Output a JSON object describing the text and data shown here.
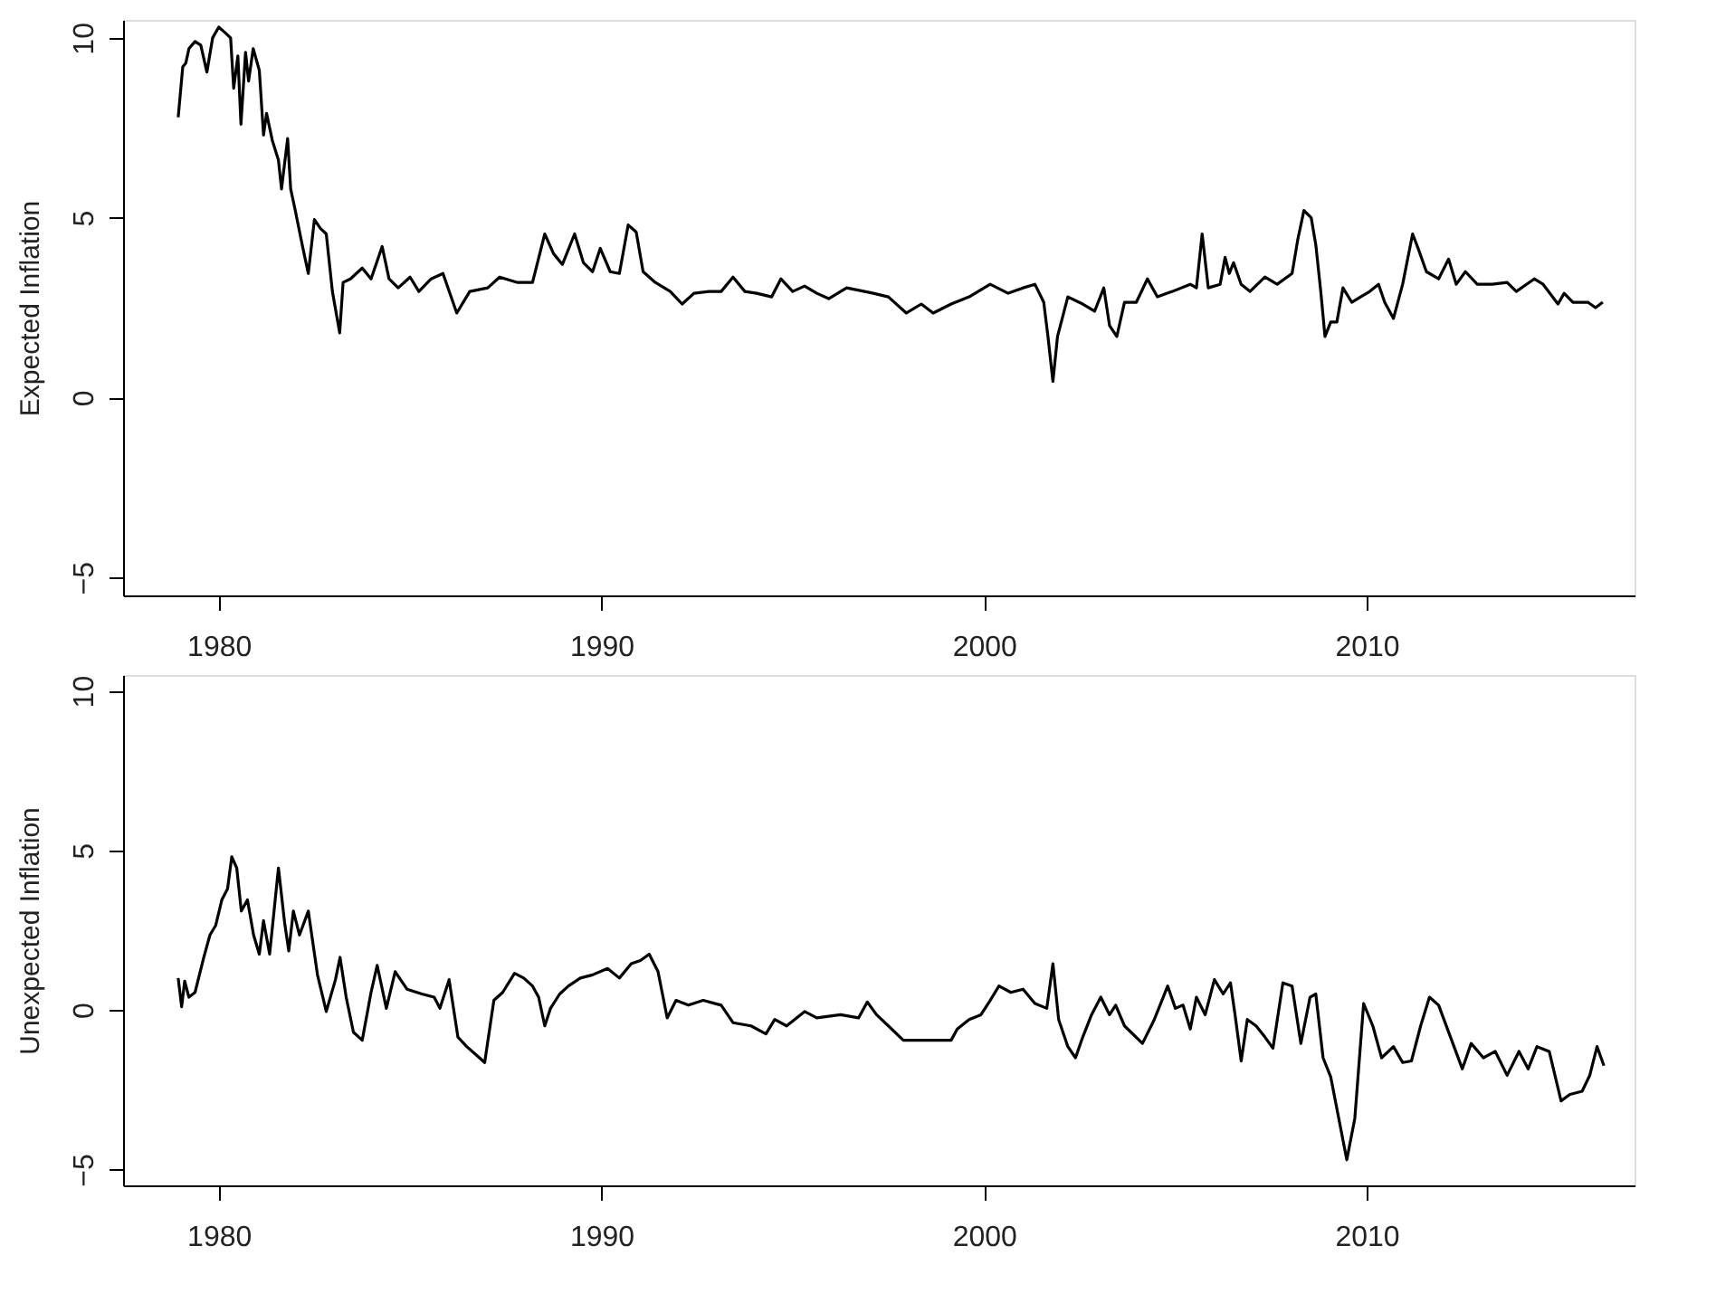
{
  "chart_data": [
    {
      "type": "line",
      "ylabel": "Expected Inflation",
      "xlim": [
        1977.5,
        2017
      ],
      "ylim": [
        -5.5,
        10.5
      ],
      "xticks": [
        1980,
        1990,
        2000,
        2010
      ],
      "yticks": [
        -5,
        0,
        5,
        10
      ],
      "grid": false,
      "x": [
        1978.94,
        1979.06,
        1979.14,
        1979.22,
        1979.38,
        1979.53,
        1979.69,
        1979.84,
        1980.0,
        1980.16,
        1980.31,
        1980.39,
        1980.5,
        1980.58,
        1980.7,
        1980.78,
        1980.9,
        1981.06,
        1981.17,
        1981.25,
        1981.4,
        1981.56,
        1981.64,
        1981.8,
        1981.88,
        1982.0,
        1982.19,
        1982.34,
        1982.5,
        1982.66,
        1982.81,
        1982.97,
        1983.16,
        1983.25,
        1983.44,
        1983.75,
        1983.98,
        1984.27,
        1984.45,
        1984.69,
        1985.0,
        1985.23,
        1985.55,
        1985.86,
        1986.22,
        1986.56,
        1987.03,
        1987.34,
        1987.81,
        1988.2,
        1988.52,
        1988.75,
        1988.98,
        1989.3,
        1989.53,
        1989.77,
        1989.97,
        1990.23,
        1990.47,
        1990.7,
        1990.91,
        1991.09,
        1991.41,
        1991.8,
        1992.11,
        1992.42,
        1992.81,
        1993.13,
        1993.44,
        1993.75,
        1994.06,
        1994.45,
        1994.69,
        1995.0,
        1995.31,
        1995.63,
        1995.94,
        1996.41,
        1996.88,
        1997.11,
        1997.5,
        1997.97,
        1998.36,
        1998.67,
        1999.14,
        1999.61,
        2000.16,
        2000.63,
        2001.02,
        2001.33,
        2001.56,
        2001.67,
        2001.8,
        2001.92,
        2002.19,
        2002.58,
        2002.89,
        2003.13,
        2003.28,
        2003.47,
        2003.67,
        2003.98,
        2004.27,
        2004.53,
        2004.92,
        2005.39,
        2005.55,
        2005.7,
        2005.86,
        2006.17,
        2006.3,
        2006.41,
        2006.52,
        2006.72,
        2006.95,
        2007.34,
        2007.66,
        2008.05,
        2008.2,
        2008.36,
        2008.55,
        2008.67,
        2008.8,
        2008.91,
        2009.06,
        2009.22,
        2009.38,
        2009.61,
        2009.84,
        2010.08,
        2010.31,
        2010.47,
        2010.7,
        2010.94,
        2011.2,
        2011.36,
        2011.56,
        2011.88,
        2012.14,
        2012.34,
        2012.58,
        2012.89,
        2013.28,
        2013.67,
        2013.91,
        2014.38,
        2014.61,
        2015.0,
        2015.16,
        2015.39,
        2015.78,
        2015.98,
        2016.17
      ],
      "series": [
        {
          "color": "#000000",
          "values": [
            7.79,
            9.2,
            9.3,
            9.7,
            9.9,
            9.8,
            9.05,
            10.0,
            10.3,
            10.15,
            10.0,
            8.6,
            9.5,
            7.6,
            9.6,
            8.8,
            9.7,
            9.1,
            7.3,
            7.9,
            7.15,
            6.6,
            5.8,
            7.2,
            5.8,
            5.2,
            4.2,
            3.45,
            4.95,
            4.7,
            4.55,
            2.95,
            1.8,
            3.2,
            3.3,
            3.6,
            3.3,
            4.2,
            3.3,
            3.05,
            3.35,
            2.95,
            3.3,
            3.45,
            2.35,
            2.95,
            3.05,
            3.35,
            3.2,
            3.2,
            4.55,
            4.0,
            3.7,
            4.55,
            3.75,
            3.5,
            4.15,
            3.5,
            3.45,
            4.8,
            4.6,
            3.5,
            3.2,
            2.95,
            2.6,
            2.9,
            2.95,
            2.95,
            3.35,
            2.95,
            2.9,
            2.8,
            3.3,
            2.95,
            3.1,
            2.9,
            2.75,
            3.05,
            2.95,
            2.9,
            2.8,
            2.35,
            2.6,
            2.35,
            2.6,
            2.8,
            3.15,
            2.9,
            3.05,
            3.15,
            2.65,
            1.7,
            0.45,
            1.7,
            2.8,
            2.6,
            2.4,
            3.05,
            2.0,
            1.7,
            2.65,
            2.65,
            3.3,
            2.8,
            2.95,
            3.15,
            3.05,
            4.55,
            3.05,
            3.15,
            3.9,
            3.45,
            3.75,
            3.15,
            2.95,
            3.35,
            3.15,
            3.45,
            4.4,
            5.2,
            5.0,
            4.25,
            2.95,
            1.7,
            2.1,
            2.1,
            3.05,
            2.65,
            2.8,
            2.95,
            3.15,
            2.65,
            2.2,
            3.15,
            4.55,
            4.1,
            3.5,
            3.3,
            3.85,
            3.15,
            3.5,
            3.15,
            3.15,
            3.2,
            2.95,
            3.3,
            3.15,
            2.6,
            2.9,
            2.65,
            2.65,
            2.5,
            2.65
          ]
        }
      ]
    },
    {
      "type": "line",
      "ylabel": "Unexpected Inflation",
      "xlim": [
        1977.5,
        2017
      ],
      "ylim": [
        -5.5,
        10.5
      ],
      "xticks": [
        1980,
        1990,
        2000,
        2010
      ],
      "yticks": [
        -5,
        0,
        5,
        10
      ],
      "grid": false,
      "x": [
        1978.94,
        1979.03,
        1979.11,
        1979.22,
        1979.38,
        1979.61,
        1979.77,
        1979.92,
        1980.08,
        1980.23,
        1980.34,
        1980.47,
        1980.59,
        1980.75,
        1980.91,
        1981.06,
        1981.17,
        1981.33,
        1981.56,
        1981.72,
        1981.83,
        1981.95,
        1982.11,
        1982.34,
        1982.58,
        1982.81,
        1983.05,
        1983.17,
        1983.33,
        1983.52,
        1983.75,
        1983.98,
        1984.14,
        1984.38,
        1984.61,
        1984.92,
        1985.31,
        1985.63,
        1985.78,
        1986.02,
        1986.25,
        1986.48,
        1986.72,
        1986.95,
        1987.19,
        1987.42,
        1987.73,
        1987.97,
        1988.2,
        1988.36,
        1988.52,
        1988.67,
        1988.91,
        1989.14,
        1989.45,
        1989.77,
        1990.16,
        1990.47,
        1990.78,
        1991.02,
        1991.25,
        1991.48,
        1991.72,
        1991.95,
        1992.27,
        1992.66,
        1993.13,
        1993.44,
        1993.91,
        1994.3,
        1994.53,
        1994.84,
        1995.31,
        1995.63,
        1996.25,
        1996.72,
        1996.95,
        1997.19,
        1997.5,
        1997.89,
        1998.36,
        1998.83,
        1999.14,
        1999.3,
        1999.61,
        1999.92,
        2000.16,
        2000.39,
        2000.7,
        2001.02,
        2001.33,
        2001.64,
        2001.8,
        2001.95,
        2002.19,
        2002.39,
        2002.58,
        2002.81,
        2003.05,
        2003.28,
        2003.44,
        2003.67,
        2004.14,
        2004.45,
        2004.8,
        2005.0,
        2005.2,
        2005.39,
        2005.55,
        2005.78,
        2006.02,
        2006.25,
        2006.44,
        2006.56,
        2006.72,
        2006.88,
        2007.11,
        2007.34,
        2007.55,
        2007.81,
        2008.05,
        2008.28,
        2008.52,
        2008.67,
        2008.86,
        2009.06,
        2009.27,
        2009.48,
        2009.69,
        2009.92,
        2010.16,
        2010.39,
        2010.7,
        2010.94,
        2011.17,
        2011.41,
        2011.64,
        2011.88,
        2012.19,
        2012.5,
        2012.73,
        2013.05,
        2013.36,
        2013.67,
        2013.98,
        2014.22,
        2014.45,
        2014.77,
        2015.08,
        2015.31,
        2015.63,
        2015.83,
        2016.02,
        2016.2
      ],
      "series": [
        {
          "color": "#000000",
          "values": [
            1.0,
            0.1,
            0.9,
            0.4,
            0.55,
            1.65,
            2.35,
            2.65,
            3.45,
            3.8,
            4.8,
            4.45,
            3.1,
            3.45,
            2.35,
            1.75,
            2.8,
            1.75,
            4.45,
            2.75,
            1.85,
            3.1,
            2.35,
            3.1,
            1.1,
            -0.05,
            0.95,
            1.65,
            0.4,
            -0.7,
            -0.95,
            0.55,
            1.4,
            0.05,
            1.2,
            0.65,
            0.5,
            0.4,
            0.05,
            0.95,
            -0.85,
            -1.15,
            -1.4,
            -1.65,
            0.3,
            0.55,
            1.15,
            1.0,
            0.75,
            0.4,
            -0.5,
            0.05,
            0.5,
            0.75,
            1.0,
            1.1,
            1.3,
            1.0,
            1.45,
            1.55,
            1.75,
            1.2,
            -0.25,
            0.3,
            0.15,
            0.3,
            0.15,
            -0.4,
            -0.5,
            -0.75,
            -0.3,
            -0.5,
            -0.05,
            -0.25,
            -0.15,
            -0.25,
            0.25,
            -0.15,
            -0.5,
            -0.95,
            -0.95,
            -0.95,
            -0.95,
            -0.6,
            -0.3,
            -0.15,
            0.3,
            0.75,
            0.55,
            0.65,
            0.2,
            0.05,
            1.45,
            -0.3,
            -1.15,
            -1.5,
            -0.85,
            -0.15,
            0.4,
            -0.15,
            0.15,
            -0.5,
            -1.05,
            -0.3,
            0.75,
            0.05,
            0.15,
            -0.6,
            0.4,
            -0.15,
            0.95,
            0.5,
            0.85,
            -0.15,
            -1.6,
            -0.3,
            -0.5,
            -0.85,
            -1.2,
            0.85,
            0.75,
            -1.05,
            0.4,
            0.5,
            -1.5,
            -2.1,
            -3.4,
            -4.7,
            -3.4,
            0.2,
            -0.5,
            -1.5,
            -1.15,
            -1.65,
            -1.6,
            -0.5,
            0.4,
            0.15,
            -0.85,
            -1.85,
            -1.05,
            -1.5,
            -1.3,
            -2.05,
            -1.3,
            -1.85,
            -1.15,
            -1.3,
            -2.85,
            -2.65,
            -2.55,
            -2.05,
            -1.15,
            -1.75
          ]
        }
      ]
    }
  ]
}
